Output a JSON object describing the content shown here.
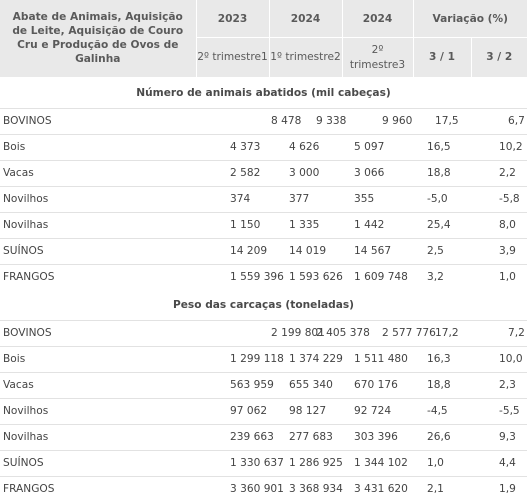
{
  "header": {
    "title": "Abate de Animais, Aquisição de Leite, Aquisição de Couro Cru e Produção de Ovos de Galinha",
    "years": [
      "2023",
      "2024",
      "2024"
    ],
    "variation": "Variação (%)",
    "periods": [
      "2º trimestre1",
      "1º trimestre2",
      "2º trimestre3"
    ],
    "ratios": [
      "3 / 1",
      "3 / 2"
    ]
  },
  "sections": [
    {
      "title": "Número de animais abatidos (mil cabeças)",
      "rows": [
        {
          "label": "BOVINOS",
          "values": [
            "8 478",
            "9 338",
            "9 960",
            "17,5",
            "6,7"
          ]
        },
        {
          "label": "Bois",
          "values": [
            "4 373",
            "4 626",
            "5 097",
            "16,5",
            "10,2"
          ]
        },
        {
          "label": "Vacas",
          "values": [
            "2 582",
            "3 000",
            "3 066",
            "18,8",
            "2,2"
          ]
        },
        {
          "label": "Novilhos",
          "values": [
            "374",
            "377",
            "355",
            "-5,0",
            "-5,8"
          ]
        },
        {
          "label": "Novilhas",
          "values": [
            "1 150",
            "1 335",
            "1 442",
            "25,4",
            "8,0"
          ]
        },
        {
          "label": "SUÍNOS",
          "values": [
            "14 209",
            "14 019",
            "14 567",
            "2,5",
            "3,9"
          ]
        },
        {
          "label": "FRANGOS",
          "values": [
            "1 559 396",
            "1 593 626",
            "1 609 748",
            "3,2",
            "1,0"
          ]
        }
      ]
    },
    {
      "title": "Peso das carcaças (toneladas)",
      "rows": [
        {
          "label": "BOVINOS",
          "values": [
            "2 199 801",
            "2 405 378",
            "2 577 776",
            "17,2",
            "7,2"
          ]
        },
        {
          "label": "Bois",
          "values": [
            "1 299 118",
            "1 374 229",
            "1 511 480",
            "16,3",
            "10,0"
          ]
        },
        {
          "label": "Vacas",
          "values": [
            "563 959",
            "655 340",
            "670 176",
            "18,8",
            "2,3"
          ]
        },
        {
          "label": "Novilhos",
          "values": [
            "97 062",
            "98 127",
            "92 724",
            "-4,5",
            "-5,5"
          ]
        },
        {
          "label": "Novilhas",
          "values": [
            "239 663",
            "277 683",
            "303 396",
            "26,6",
            "9,3"
          ]
        },
        {
          "label": "SUÍNOS",
          "values": [
            "1 330 637",
            "1 286 925",
            "1 344 102",
            "1,0",
            "4,4"
          ]
        },
        {
          "label": "FRANGOS",
          "values": [
            "3 360 901",
            "3 368 934",
            "3 431 620",
            "2,1",
            "1,9"
          ]
        }
      ]
    }
  ]
}
